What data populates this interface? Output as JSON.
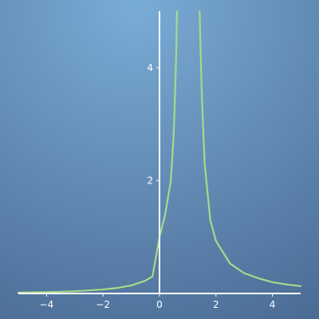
{
  "chart_data": {
    "type": "line",
    "title": "",
    "xlabel": "",
    "ylabel": "",
    "xlim": [
      -5,
      5
    ],
    "ylim": [
      0,
      5
    ],
    "grid": false,
    "legend": "none",
    "x_ticks": [
      {
        "value": -4,
        "label": "−4"
      },
      {
        "value": -2,
        "label": "−2"
      },
      {
        "value": 0,
        "label": "0"
      },
      {
        "value": 2,
        "label": "2"
      },
      {
        "value": 4,
        "label": "4"
      }
    ],
    "y_ticks": [
      {
        "value": 2,
        "label": "2"
      },
      {
        "value": 4,
        "label": "4"
      }
    ],
    "series": [
      {
        "color": "#a6d98a",
        "segments": [
          {
            "x": [
              -5.0,
              -4.0,
              -3.0,
              -2.0,
              -1.5,
              -1.0,
              -0.5,
              -0.25,
              0.0,
              0.2,
              0.4,
              0.5,
              0.55,
              0.6,
              0.62
            ],
            "y": [
              0.016,
              0.024,
              0.039,
              0.07,
              0.097,
              0.142,
              0.226,
              0.301,
              1.0,
              1.4,
              2.0,
              2.8,
              3.5,
              4.4,
              5.0
            ]
          },
          {
            "x": [
              1.42,
              1.45,
              1.5,
              1.6,
              1.8,
              2.0,
              2.5,
              3.0,
              3.5,
              4.0,
              4.5,
              5.0
            ],
            "y": [
              5.0,
              4.4,
              3.5,
              2.3,
              1.3,
              0.93,
              0.53,
              0.36,
              0.27,
              0.2,
              0.16,
              0.13
            ]
          }
        ]
      }
    ],
    "colors": {
      "background_light": "#79acd5",
      "background_dark": "#4a6a93",
      "axis": "#ffffff"
    }
  }
}
